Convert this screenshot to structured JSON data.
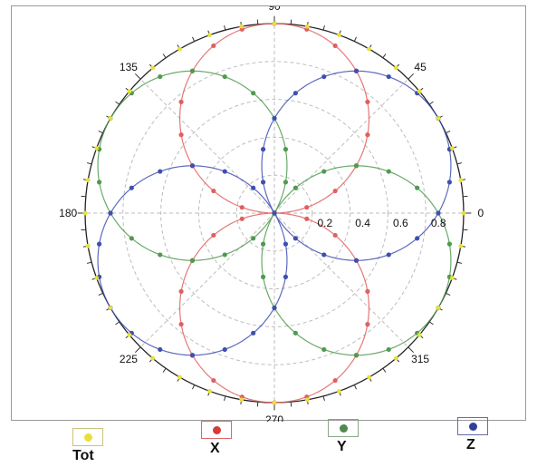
{
  "chart_data": {
    "type": "polar-line",
    "title": "",
    "angle_ticks": [
      "0",
      "45",
      "90",
      "135",
      "180",
      "225",
      "270",
      "315"
    ],
    "radial_ticks": [
      "0.2",
      "0.4",
      "0.6",
      "0.8"
    ],
    "r_range": [
      0,
      1
    ],
    "grid": true,
    "legend_placement": "bottom",
    "series": [
      {
        "name": "Tot",
        "color": "#e8df3a",
        "formula": "r = 1",
        "values_note": "constant 1.0 at all angles"
      },
      {
        "name": "X",
        "color": "#e06060",
        "formula": "r = |sin(theta)|"
      },
      {
        "name": "Y",
        "color": "#4f9a4f",
        "formula": "r = |sin(theta - 60)|"
      },
      {
        "name": "Z",
        "color": "#3f4fb0",
        "formula": "r = |sin(theta + 60)|"
      }
    ]
  },
  "legend": {
    "items": [
      {
        "label": "Tot",
        "color": "#e8df3a",
        "border": "#c9c37a"
      },
      {
        "label": "X",
        "color": "#d83a3a",
        "border": "#d86a6a"
      },
      {
        "label": "Y",
        "color": "#4f8a4f",
        "border": "#8aa88a"
      },
      {
        "label": "Z",
        "color": "#2f3f9a",
        "border": "#6a6aa8"
      }
    ]
  }
}
